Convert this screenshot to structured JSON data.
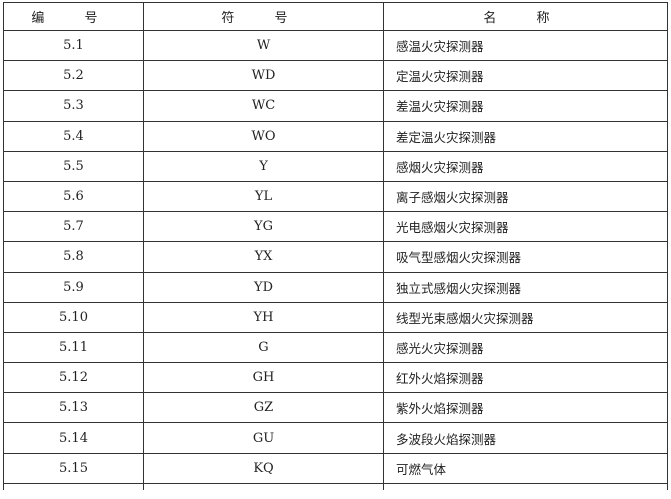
{
  "headers": {
    "number": "编 号",
    "symbol": "符 号",
    "name": "名 称"
  },
  "rows": [
    {
      "number": "5.1",
      "symbol": "W",
      "name": "感温火灾探测器"
    },
    {
      "number": "5.2",
      "symbol": "WD",
      "name": "定温火灾探测器"
    },
    {
      "number": "5.3",
      "symbol": "WC",
      "name": "差温火灾探测器"
    },
    {
      "number": "5.4",
      "symbol": "WO",
      "name": "差定温火灾探测器"
    },
    {
      "number": "5.5",
      "symbol": "Y",
      "name": "感烟火灾探测器"
    },
    {
      "number": "5.6",
      "symbol": "YL",
      "name": "离子感烟火灾探测器"
    },
    {
      "number": "5.7",
      "symbol": "YG",
      "name": "光电感烟火灾探测器"
    },
    {
      "number": "5.8",
      "symbol": "YX",
      "name": "吸气型感烟火灾探测器"
    },
    {
      "number": "5.9",
      "symbol": "YD",
      "name": "独立式感烟火灾探测器"
    },
    {
      "number": "5.10",
      "symbol": "YH",
      "name": "线型光束感烟火灾探测器"
    },
    {
      "number": "5.11",
      "symbol": "G",
      "name": "感光火灾探测器"
    },
    {
      "number": "5.12",
      "symbol": "GH",
      "name": "红外火焰探测器"
    },
    {
      "number": "5.13",
      "symbol": "GZ",
      "name": "紫外火焰探测器"
    },
    {
      "number": "5.14",
      "symbol": "GU",
      "name": "多波段火焰探测器"
    },
    {
      "number": "5.15",
      "symbol": "KQ",
      "name": "可燃气体"
    }
  ]
}
